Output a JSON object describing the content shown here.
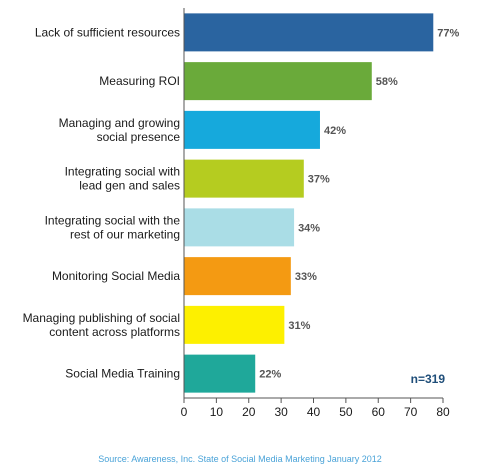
{
  "chart_data": {
    "type": "bar",
    "orientation": "horizontal",
    "categories": [
      [
        "Lack of sufficient resources"
      ],
      [
        "Measuring ROI"
      ],
      [
        "Managing and growing",
        "social presence"
      ],
      [
        "Integrating social with",
        "lead gen and sales"
      ],
      [
        "Integrating social with the",
        "rest of our marketing"
      ],
      [
        "Monitoring Social Media"
      ],
      [
        "Managing publishing of social",
        "content across platforms"
      ],
      [
        "Social Media Training"
      ]
    ],
    "values": [
      77,
      58,
      42,
      37,
      34,
      33,
      31,
      22
    ],
    "value_labels": [
      "77%",
      "58%",
      "42%",
      "37%",
      "34%",
      "33%",
      "31%",
      "22%"
    ],
    "colors": [
      "#2a64a0",
      "#6aaa3a",
      "#16a9dc",
      "#b5cc20",
      "#aadde6",
      "#f49a12",
      "#fdf000",
      "#1fa89a"
    ],
    "xlim": [
      0,
      80
    ],
    "xticks": [
      0,
      10,
      20,
      30,
      40,
      50,
      60,
      70,
      80
    ],
    "grid": false,
    "annotation": "n=319",
    "source": "Source: Awareness, Inc. State of Social Media Marketing January 2012"
  }
}
